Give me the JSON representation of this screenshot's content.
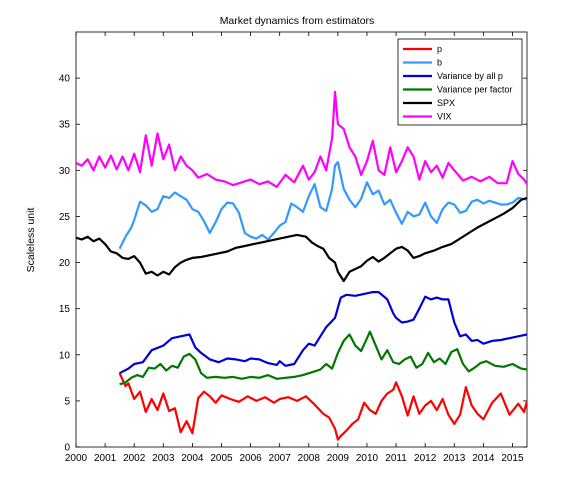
{
  "chart_data": {
    "type": "line",
    "title": "Market dynamics from estimators",
    "xlabel": "",
    "ylabel": "Scaleless unit",
    "xlim": [
      2000,
      2015.5
    ],
    "ylim": [
      0,
      45
    ],
    "x_ticks": [
      "2000",
      "2001",
      "2002",
      "2003",
      "2004",
      "2005",
      "2006",
      "2007",
      "2008",
      "2009",
      "2010",
      "2011",
      "2012",
      "2013",
      "2014",
      "2015"
    ],
    "y_ticks": [
      "0",
      "5",
      "10",
      "15",
      "20",
      "25",
      "30",
      "35",
      "40"
    ],
    "grid": false,
    "legend_position": "top-right",
    "series": [
      {
        "name": "p",
        "color": "#ff0000",
        "x": [
          2001.5,
          2001.7,
          2001.8,
          2002.0,
          2002.2,
          2002.4,
          2002.6,
          2002.8,
          2003.0,
          2003.2,
          2003.4,
          2003.6,
          2003.8,
          2004.0,
          2004.2,
          2004.4,
          2004.6,
          2004.8,
          2005.0,
          2005.3,
          2005.6,
          2005.9,
          2006.2,
          2006.5,
          2006.8,
          2007.0,
          2007.3,
          2007.6,
          2007.9,
          2008.2,
          2008.5,
          2008.7,
          2008.9,
          2009.0,
          2009.1,
          2009.3,
          2009.5,
          2009.7,
          2009.9,
          2010.1,
          2010.3,
          2010.5,
          2010.7,
          2010.9,
          2011.0,
          2011.2,
          2011.4,
          2011.6,
          2011.8,
          2012.0,
          2012.2,
          2012.4,
          2012.6,
          2012.8,
          2013.0,
          2013.2,
          2013.4,
          2013.6,
          2013.8,
          2014.0,
          2014.3,
          2014.6,
          2014.9,
          2015.2,
          2015.4,
          2015.5
        ],
        "values": [
          8.0,
          6.6,
          6.9,
          5.2,
          6.0,
          3.8,
          5.2,
          4.0,
          5.8,
          3.9,
          4.2,
          1.6,
          2.8,
          1.5,
          5.3,
          6.0,
          5.5,
          4.8,
          5.6,
          5.2,
          4.9,
          5.5,
          5.0,
          5.4,
          4.8,
          5.2,
          5.4,
          5.0,
          5.5,
          4.6,
          3.6,
          3.2,
          2.0,
          0.8,
          1.2,
          1.8,
          2.5,
          3.0,
          4.8,
          4.0,
          3.6,
          5.0,
          5.8,
          6.2,
          7.0,
          5.5,
          3.4,
          5.5,
          3.6,
          4.5,
          5.0,
          4.0,
          5.2,
          3.5,
          2.5,
          3.5,
          6.5,
          4.5,
          3.6,
          3.0,
          4.8,
          5.8,
          3.5,
          4.7,
          3.8,
          5.0
        ]
      },
      {
        "name": "b",
        "color": "#3399ff",
        "x": [
          2001.5,
          2001.7,
          2001.9,
          2002.0,
          2002.2,
          2002.4,
          2002.6,
          2002.8,
          2003.0,
          2003.2,
          2003.4,
          2003.6,
          2003.8,
          2004.0,
          2004.2,
          2004.4,
          2004.6,
          2004.8,
          2005.0,
          2005.2,
          2005.4,
          2005.6,
          2005.8,
          2006.0,
          2006.2,
          2006.4,
          2006.6,
          2006.8,
          2007.0,
          2007.2,
          2007.4,
          2007.6,
          2007.8,
          2008.0,
          2008.2,
          2008.4,
          2008.6,
          2008.8,
          2008.9,
          2009.0,
          2009.2,
          2009.4,
          2009.6,
          2009.8,
          2010.0,
          2010.2,
          2010.4,
          2010.6,
          2010.8,
          2011.0,
          2011.2,
          2011.4,
          2011.6,
          2011.8,
          2012.0,
          2012.2,
          2012.4,
          2012.6,
          2012.8,
          2013.0,
          2013.2,
          2013.4,
          2013.6,
          2013.8,
          2014.0,
          2014.2,
          2014.4,
          2014.6,
          2014.8,
          2015.0,
          2015.2,
          2015.4,
          2015.5
        ],
        "values": [
          21.5,
          22.8,
          23.8,
          24.6,
          26.6,
          26.2,
          25.5,
          25.8,
          27.2,
          27.0,
          27.6,
          27.2,
          26.8,
          25.8,
          25.5,
          24.5,
          23.2,
          24.4,
          25.8,
          26.5,
          26.4,
          25.4,
          23.2,
          22.8,
          22.6,
          23.0,
          22.5,
          23.2,
          24.0,
          24.4,
          26.4,
          26.0,
          25.5,
          27.2,
          28.5,
          26.0,
          25.6,
          28.0,
          30.5,
          30.9,
          28.0,
          26.8,
          26.0,
          26.9,
          28.7,
          27.4,
          27.8,
          26.3,
          26.8,
          25.4,
          24.2,
          25.5,
          25.0,
          25.2,
          26.5,
          25.0,
          24.3,
          25.8,
          26.5,
          26.3,
          25.4,
          25.6,
          26.6,
          26.8,
          26.4,
          26.7,
          26.5,
          26.3,
          26.3,
          26.5,
          27.0,
          26.9,
          26.8
        ]
      },
      {
        "name": "Variance by all p",
        "color": "#0000dd",
        "x": [
          2001.5,
          2001.8,
          2002.0,
          2002.3,
          2002.6,
          2003.0,
          2003.3,
          2003.6,
          2003.9,
          2004.1,
          2004.3,
          2004.6,
          2004.9,
          2005.2,
          2005.5,
          2005.8,
          2006.0,
          2006.3,
          2006.6,
          2006.9,
          2007.0,
          2007.2,
          2007.5,
          2007.8,
          2008.0,
          2008.2,
          2008.4,
          2008.6,
          2008.9,
          2009.1,
          2009.3,
          2009.6,
          2009.9,
          2010.2,
          2010.4,
          2010.7,
          2010.9,
          2011.0,
          2011.2,
          2011.4,
          2011.6,
          2011.8,
          2012.0,
          2012.2,
          2012.4,
          2012.6,
          2012.8,
          2013.0,
          2013.2,
          2013.4,
          2013.6,
          2013.8,
          2014.0,
          2014.3,
          2014.6,
          2014.9,
          2015.2,
          2015.5
        ],
        "values": [
          8.0,
          8.5,
          9.0,
          9.2,
          10.5,
          11.0,
          11.8,
          12.0,
          12.2,
          10.8,
          10.2,
          9.5,
          9.2,
          9.6,
          9.5,
          9.3,
          9.6,
          9.5,
          9.1,
          8.9,
          9.3,
          8.8,
          9.0,
          10.5,
          11.2,
          11.0,
          12.0,
          13.0,
          14.0,
          16.2,
          16.5,
          16.4,
          16.6,
          16.8,
          16.8,
          16.0,
          14.5,
          14.0,
          13.5,
          13.6,
          13.8,
          15.0,
          16.3,
          16.0,
          16.2,
          16.0,
          16.0,
          13.5,
          12.0,
          12.2,
          11.5,
          11.6,
          11.2,
          11.5,
          11.6,
          11.8,
          12.0,
          12.2
        ]
      },
      {
        "name": "Variance per factor",
        "color": "#007700",
        "x": [
          2001.5,
          2001.7,
          2001.9,
          2002.1,
          2002.3,
          2002.5,
          2002.7,
          2002.9,
          2003.1,
          2003.3,
          2003.5,
          2003.7,
          2003.9,
          2004.1,
          2004.3,
          2004.5,
          2004.8,
          2005.1,
          2005.4,
          2005.7,
          2006.0,
          2006.3,
          2006.6,
          2006.9,
          2007.2,
          2007.5,
          2007.8,
          2008.1,
          2008.4,
          2008.6,
          2008.8,
          2009.0,
          2009.2,
          2009.4,
          2009.6,
          2009.8,
          2010.0,
          2010.1,
          2010.3,
          2010.5,
          2010.7,
          2010.9,
          2011.1,
          2011.3,
          2011.5,
          2011.7,
          2011.9,
          2012.1,
          2012.3,
          2012.5,
          2012.7,
          2012.9,
          2013.1,
          2013.3,
          2013.5,
          2013.7,
          2013.9,
          2014.1,
          2014.4,
          2014.7,
          2015.0,
          2015.3,
          2015.5
        ],
        "values": [
          6.8,
          7.0,
          7.5,
          7.8,
          7.6,
          8.6,
          8.5,
          9.0,
          8.3,
          8.8,
          8.6,
          9.8,
          10.1,
          9.5,
          8.0,
          7.5,
          7.6,
          7.5,
          7.6,
          7.4,
          7.6,
          7.5,
          7.8,
          7.4,
          7.5,
          7.6,
          7.8,
          8.1,
          8.4,
          9.0,
          8.5,
          10.2,
          11.5,
          12.2,
          11.0,
          10.4,
          11.8,
          12.5,
          11.0,
          9.5,
          10.5,
          9.2,
          9.0,
          9.5,
          9.8,
          8.6,
          9.0,
          10.2,
          9.2,
          9.6,
          9.0,
          10.3,
          10.6,
          9.0,
          8.2,
          8.6,
          9.1,
          9.3,
          8.8,
          8.7,
          9.0,
          8.5,
          8.4
        ]
      },
      {
        "name": "SPX",
        "color": "#000000",
        "x": [
          2000.0,
          2000.2,
          2000.4,
          2000.6,
          2000.8,
          2001.0,
          2001.2,
          2001.4,
          2001.6,
          2001.8,
          2002.0,
          2002.2,
          2002.4,
          2002.6,
          2002.8,
          2003.0,
          2003.2,
          2003.4,
          2003.6,
          2003.8,
          2004.0,
          2004.3,
          2004.6,
          2004.9,
          2005.2,
          2005.5,
          2005.8,
          2006.1,
          2006.4,
          2006.7,
          2007.0,
          2007.3,
          2007.6,
          2007.9,
          2008.1,
          2008.3,
          2008.5,
          2008.7,
          2008.9,
          2009.0,
          2009.2,
          2009.4,
          2009.6,
          2009.8,
          2010.0,
          2010.2,
          2010.4,
          2010.6,
          2010.8,
          2011.0,
          2011.2,
          2011.4,
          2011.6,
          2011.8,
          2012.0,
          2012.3,
          2012.6,
          2012.9,
          2013.2,
          2013.5,
          2013.8,
          2014.1,
          2014.4,
          2014.7,
          2015.0,
          2015.3,
          2015.5
        ],
        "values": [
          22.7,
          22.5,
          22.8,
          22.3,
          22.6,
          22.0,
          21.2,
          21.0,
          20.5,
          20.4,
          20.7,
          20.0,
          18.8,
          19.0,
          18.6,
          19.0,
          18.7,
          19.5,
          20.0,
          20.3,
          20.5,
          20.6,
          20.8,
          21.0,
          21.2,
          21.6,
          21.8,
          22.0,
          22.2,
          22.4,
          22.6,
          22.8,
          23.0,
          22.8,
          22.2,
          21.8,
          21.5,
          20.5,
          20.0,
          19.0,
          18.0,
          19.0,
          19.3,
          19.6,
          20.2,
          20.6,
          20.1,
          20.5,
          21.0,
          21.5,
          21.7,
          21.3,
          20.5,
          20.7,
          21.0,
          21.3,
          21.7,
          22.0,
          22.6,
          23.2,
          23.8,
          24.3,
          24.8,
          25.3,
          25.9,
          26.8,
          27.0
        ]
      },
      {
        "name": "VIX",
        "color": "#ff00ff",
        "x": [
          2000.0,
          2000.2,
          2000.4,
          2000.6,
          2000.8,
          2001.0,
          2001.2,
          2001.4,
          2001.6,
          2001.8,
          2002.0,
          2002.2,
          2002.4,
          2002.6,
          2002.8,
          2003.0,
          2003.2,
          2003.4,
          2003.6,
          2003.8,
          2004.0,
          2004.2,
          2004.5,
          2004.8,
          2005.1,
          2005.4,
          2005.7,
          2006.0,
          2006.3,
          2006.6,
          2006.9,
          2007.2,
          2007.5,
          2007.8,
          2008.0,
          2008.2,
          2008.4,
          2008.6,
          2008.8,
          2008.9,
          2009.0,
          2009.2,
          2009.4,
          2009.6,
          2009.8,
          2010.0,
          2010.2,
          2010.4,
          2010.6,
          2010.8,
          2011.0,
          2011.2,
          2011.4,
          2011.6,
          2011.8,
          2012.0,
          2012.2,
          2012.4,
          2012.6,
          2012.8,
          2013.0,
          2013.3,
          2013.6,
          2013.9,
          2014.2,
          2014.5,
          2014.8,
          2015.0,
          2015.2,
          2015.4,
          2015.5
        ],
        "values": [
          30.8,
          30.5,
          31.2,
          30.0,
          31.5,
          30.3,
          31.6,
          30.1,
          31.5,
          30.0,
          31.8,
          29.8,
          33.8,
          30.5,
          34.0,
          31.2,
          32.8,
          30.0,
          31.5,
          30.5,
          30.0,
          29.2,
          29.6,
          29.0,
          28.8,
          28.4,
          28.7,
          29.0,
          28.5,
          28.8,
          28.2,
          29.5,
          28.7,
          30.5,
          29.0,
          29.8,
          31.5,
          30.0,
          33.5,
          38.5,
          35.0,
          34.5,
          32.5,
          31.5,
          29.5,
          31.0,
          33.2,
          30.0,
          29.5,
          32.5,
          29.8,
          31.0,
          32.5,
          31.5,
          29.0,
          31.0,
          29.8,
          30.5,
          29.2,
          30.8,
          30.0,
          28.9,
          29.3,
          28.8,
          29.3,
          28.6,
          28.6,
          31.0,
          29.6,
          29.0,
          28.5
        ]
      }
    ]
  }
}
